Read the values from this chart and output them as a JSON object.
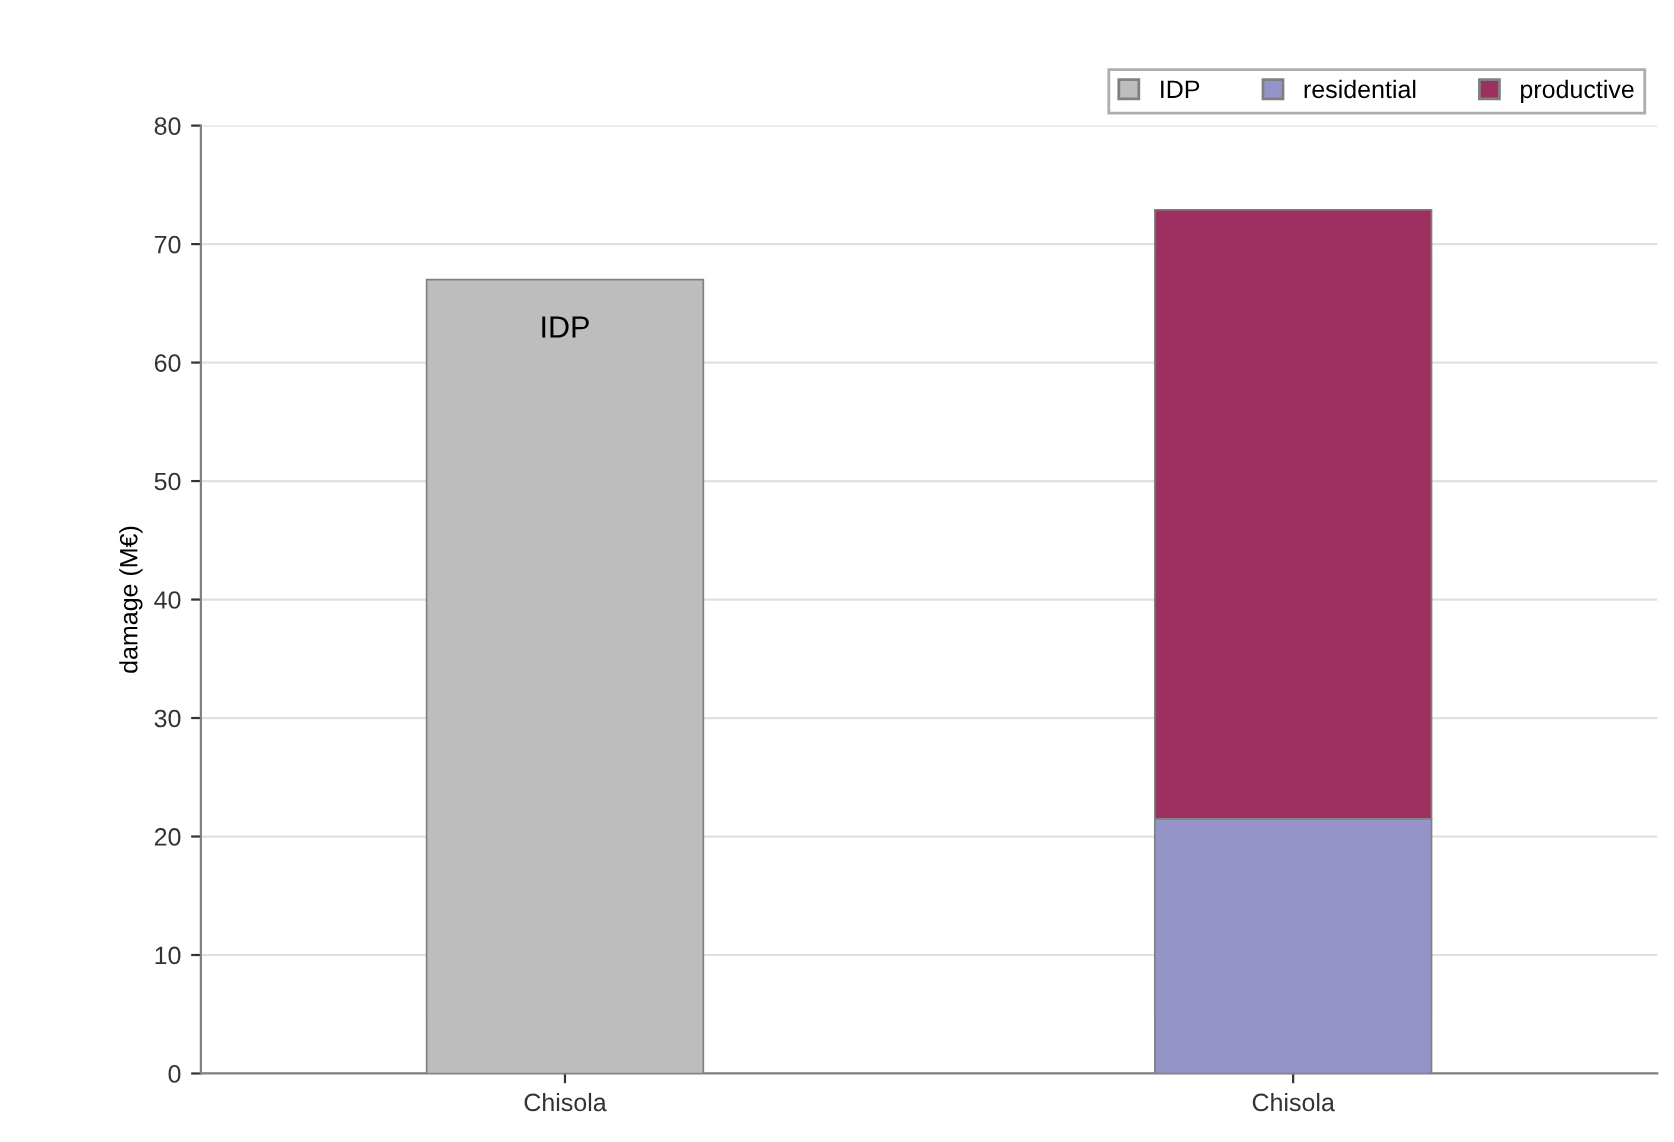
{
  "chart_data": {
    "type": "bar",
    "stacked": true,
    "ylabel": "damage (M€)",
    "categories": [
      "Chisola",
      "Chisola"
    ],
    "series": [
      {
        "name": "IDP",
        "color": "#bdbdbd",
        "values": [
          67,
          null
        ]
      },
      {
        "name": "residential",
        "color": "#9494c8",
        "values": [
          null,
          21.5
        ]
      },
      {
        "name": "productive",
        "color": "#9c3060",
        "values": [
          null,
          51.4
        ]
      }
    ],
    "ylim": [
      0,
      80
    ],
    "yticks": [
      0,
      10,
      20,
      30,
      40,
      50,
      60,
      70,
      80
    ],
    "grid": "y",
    "legend": "top right",
    "annotations": [
      "IDP"
    ]
  }
}
